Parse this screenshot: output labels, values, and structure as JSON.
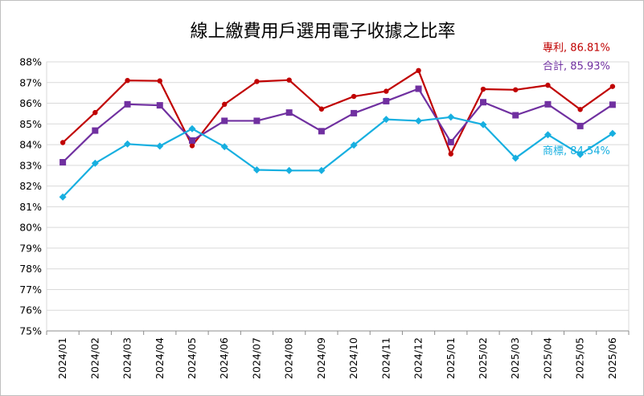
{
  "chart_data": {
    "type": "line",
    "title": "線上繳費用戶選用電子收據之比率",
    "categories": [
      "2024/01",
      "2024/02",
      "2024/03",
      "2024/04",
      "2024/05",
      "2024/06",
      "2024/07",
      "2024/08",
      "2024/09",
      "2024/10",
      "2024/11",
      "2024/12",
      "2025/01",
      "2025/02",
      "2025/03",
      "2025/04",
      "2025/05",
      "2025/06"
    ],
    "ylim": [
      75,
      88
    ],
    "yticks": [
      "75%",
      "76%",
      "77%",
      "78%",
      "79%",
      "80%",
      "81%",
      "82%",
      "83%",
      "84%",
      "85%",
      "86%",
      "87%",
      "88%"
    ],
    "grid": true,
    "series": [
      {
        "name": "專利",
        "color": "#c00000",
        "marker": "circle",
        "end_label": "專利, 86.81%",
        "values": [
          84.1,
          85.55,
          87.1,
          87.08,
          83.95,
          85.95,
          87.05,
          87.12,
          85.72,
          86.33,
          86.58,
          87.58,
          83.55,
          86.68,
          86.65,
          86.87,
          85.7,
          86.81
        ]
      },
      {
        "name": "合計",
        "color": "#7030a0",
        "marker": "square",
        "end_label": "合計, 85.93%",
        "values": [
          83.15,
          84.68,
          85.95,
          85.9,
          84.2,
          85.15,
          85.15,
          85.55,
          84.65,
          85.52,
          86.1,
          86.7,
          84.12,
          86.05,
          85.42,
          85.95,
          84.9,
          85.93
        ]
      },
      {
        "name": "商標",
        "color": "#17afe0",
        "marker": "diamond",
        "end_label": "商標, 84.54%",
        "values": [
          81.47,
          83.1,
          84.03,
          83.93,
          84.77,
          83.9,
          82.78,
          82.75,
          82.75,
          83.98,
          85.22,
          85.15,
          85.33,
          84.97,
          83.35,
          84.48,
          83.53,
          84.54
        ]
      }
    ]
  }
}
